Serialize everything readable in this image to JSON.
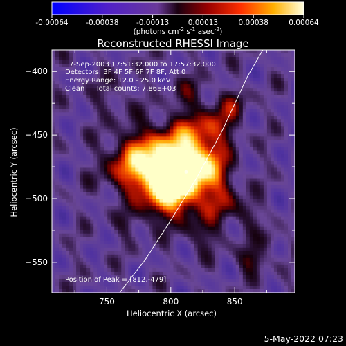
{
  "colorbar": {
    "ticks": [
      "-0.00064",
      "-0.00038",
      "-0.00013",
      "0.00013",
      "0.00038",
      "0.00064"
    ],
    "unit_pre": "(photons cm",
    "unit_exp1": "-2",
    "unit_mid1": " s",
    "unit_exp2": "-1",
    "unit_mid2": " asec",
    "unit_exp3": "-2",
    "unit_post": ")",
    "min": -0.00064,
    "max": 0.00064
  },
  "chart_data": {
    "type": "heatmap",
    "title": "Reconstructed RHESSI Image",
    "xlabel": "Heliocentric X (arcsec)",
    "ylabel": "Heliocentric Y (arcsec)",
    "xlim": [
      707,
      897
    ],
    "ylim": [
      -574,
      -383
    ],
    "x_ticks": [
      750,
      800,
      850
    ],
    "y_ticks": [
      -400,
      -450,
      -500,
      -550
    ],
    "colormap": "rhessi-hot-blue",
    "peak": [
      812,
      -479
    ],
    "limb_curve": [
      [
        760,
        -574
      ],
      [
        780,
        -548
      ],
      [
        800,
        -517
      ],
      [
        820,
        -484
      ],
      [
        840,
        -447
      ],
      [
        860,
        -404
      ],
      [
        872,
        -383
      ]
    ],
    "annotations": [
      "7-Sep-2003 17:51:32.000 to 17:57:32.000",
      "Detectors: 3F 4F 5F 6F 7F 8F, Att 0",
      "Energy Range: 12.0 - 25.0 keV",
      "Clean     Total counts: 7.86E+03",
      "Position of Peak = [812,-479]"
    ]
  },
  "footer_timestamp": "5-May-2022 07:23"
}
